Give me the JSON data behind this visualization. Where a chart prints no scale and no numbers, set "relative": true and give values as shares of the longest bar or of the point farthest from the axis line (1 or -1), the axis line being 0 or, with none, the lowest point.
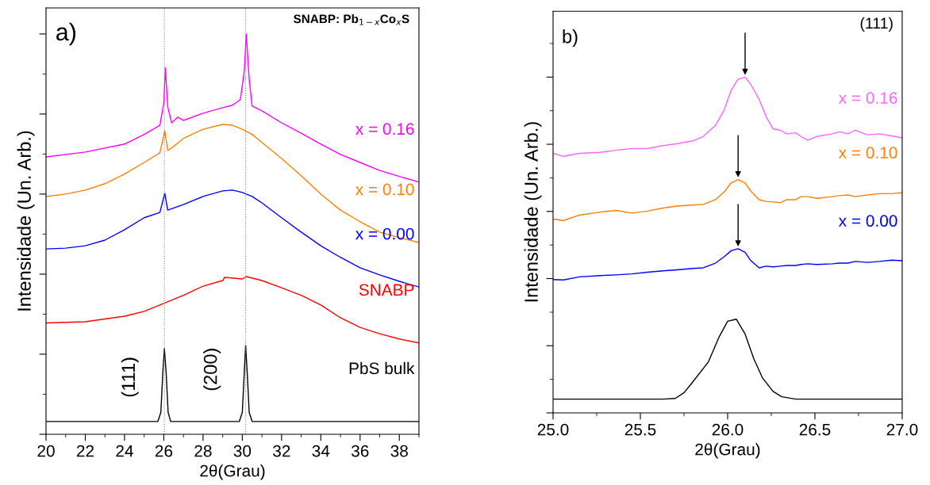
{
  "chart_data": [
    {
      "type": "line",
      "relative": true,
      "xlabel": "2θ(Grau)",
      "ylabel": "Intensidade (Un. Arb.)",
      "xlim": [
        20,
        39
      ],
      "xticks": [
        20,
        22,
        24,
        26,
        28,
        30,
        32,
        34,
        36,
        38
      ],
      "tick_labels": "x",
      "grid": false,
      "legend": false,
      "marker": "none",
      "line_style": "solid",
      "annotations": [
        "a)",
        "SNABP: Pb$_{1−x}$Co$_{x}$S",
        "(111)",
        "(200)"
      ],
      "ref_lines": [
        {
          "axis": "x",
          "value": 26.03,
          "label": null,
          "color": "#808080",
          "line_style": "dotted"
        },
        {
          "axis": "x",
          "value": 30.17,
          "label": null,
          "color": "#808080",
          "line_style": "dotted"
        }
      ],
      "series": [
        {
          "name": "x = 0.16",
          "color": "#ff00ff",
          "x": [
            20,
            22,
            24,
            25,
            25.8,
            26.0,
            26.08,
            26.2,
            26.4,
            26.7,
            27,
            28,
            29,
            29.5,
            29.9,
            30.1,
            30.2,
            30.35,
            30.5,
            31,
            32,
            33,
            34,
            35,
            36,
            37,
            38,
            39
          ],
          "values": [
            0.693,
            0.705,
            0.725,
            0.749,
            0.772,
            0.828,
            0.915,
            0.818,
            0.778,
            0.792,
            0.784,
            0.802,
            0.816,
            0.822,
            0.836,
            0.907,
            1.0,
            0.887,
            0.82,
            0.808,
            0.778,
            0.752,
            0.725,
            0.699,
            0.679,
            0.659,
            0.644,
            0.63
          ]
        },
        {
          "name": "x = 0.10",
          "color": "#ff8000",
          "x": [
            20,
            21,
            22,
            23,
            24,
            25,
            25.8,
            26.05,
            26.2,
            26.5,
            27,
            28,
            29,
            29.5,
            30,
            30.5,
            31,
            32,
            33,
            34,
            35,
            36,
            37,
            38,
            39
          ],
          "values": [
            0.594,
            0.6,
            0.61,
            0.626,
            0.65,
            0.679,
            0.703,
            0.758,
            0.709,
            0.719,
            0.739,
            0.762,
            0.774,
            0.772,
            0.762,
            0.749,
            0.729,
            0.689,
            0.646,
            0.6,
            0.56,
            0.531,
            0.505,
            0.491,
            0.479
          ]
        },
        {
          "name": "x = 0.00",
          "color": "#0000ff",
          "x": [
            20,
            21,
            22,
            23,
            24,
            25,
            25.8,
            26.05,
            26.2,
            27,
            28,
            29,
            29.5,
            30,
            30.5,
            31,
            32,
            33,
            34,
            35,
            36,
            37,
            38,
            39
          ],
          "values": [
            0.463,
            0.465,
            0.471,
            0.485,
            0.511,
            0.541,
            0.554,
            0.602,
            0.56,
            0.574,
            0.594,
            0.608,
            0.61,
            0.604,
            0.594,
            0.578,
            0.541,
            0.505,
            0.471,
            0.442,
            0.416,
            0.398,
            0.382,
            0.368
          ]
        },
        {
          "name": "SNABP",
          "color": "#ff0000",
          "x": [
            20,
            22,
            24,
            25,
            26,
            27,
            28,
            29,
            29.1,
            30,
            30.2,
            31,
            32,
            33,
            34,
            35,
            36,
            37,
            38,
            39
          ],
          "values": [
            0.278,
            0.281,
            0.295,
            0.307,
            0.327,
            0.347,
            0.37,
            0.384,
            0.392,
            0.388,
            0.394,
            0.384,
            0.366,
            0.347,
            0.323,
            0.291,
            0.267,
            0.251,
            0.238,
            0.228
          ]
        },
        {
          "name": "PbS bulk",
          "color": "#000000",
          "x": [
            20,
            25.7,
            25.85,
            25.95,
            26.03,
            26.12,
            26.22,
            26.35,
            29.85,
            30.0,
            30.1,
            30.17,
            30.25,
            30.35,
            30.5,
            39
          ],
          "values": [
            0.032,
            0.032,
            0.055,
            0.154,
            0.214,
            0.154,
            0.055,
            0.032,
            0.032,
            0.055,
            0.154,
            0.222,
            0.154,
            0.055,
            0.032,
            0.032
          ]
        }
      ]
    },
    {
      "type": "line",
      "relative": true,
      "xlabel": "2θ(Grau)",
      "ylabel": "Intensidade (Un. Arb.)",
      "xlim": [
        25,
        27
      ],
      "xticks": [
        {
          "value": 25,
          "label": "25.0"
        },
        {
          "value": 25.5,
          "label": "25.5"
        },
        {
          "value": 26,
          "label": "26.0"
        },
        {
          "value": 26.5,
          "label": "26.5"
        },
        {
          "value": 27,
          "label": "27.0"
        }
      ],
      "tick_labels": "x",
      "grid": false,
      "legend": false,
      "marker": "none",
      "line_style": "solid",
      "annotations": [
        "b)",
        "(111)"
      ],
      "series": [
        {
          "name": "x = 0.16",
          "color": "#ff66ff",
          "x": [
            25.0,
            25.06,
            25.15,
            25.27,
            25.36,
            25.45,
            25.54,
            25.63,
            25.71,
            25.8,
            25.86,
            25.93,
            25.98,
            26.02,
            26.06,
            26.1,
            26.13,
            26.18,
            26.22,
            26.26,
            26.3,
            26.34,
            26.39,
            26.42,
            26.46,
            26.51,
            26.6,
            26.64,
            26.69,
            26.73,
            26.8,
            26.87,
            26.94,
            27.0
          ],
          "values": [
            0.773,
            0.764,
            0.773,
            0.776,
            0.782,
            0.787,
            0.787,
            0.796,
            0.802,
            0.81,
            0.823,
            0.856,
            0.902,
            0.961,
            0.994,
            1.0,
            0.98,
            0.934,
            0.883,
            0.846,
            0.842,
            0.831,
            0.834,
            0.823,
            0.812,
            0.823,
            0.831,
            0.837,
            0.831,
            0.842,
            0.828,
            0.831,
            0.825,
            0.819
          ]
        },
        {
          "name": "x = 0.10",
          "color": "#ff8000",
          "x": [
            25.0,
            25.06,
            25.15,
            25.27,
            25.36,
            25.45,
            25.54,
            25.63,
            25.71,
            25.8,
            25.86,
            25.93,
            25.98,
            26.02,
            26.06,
            26.1,
            26.13,
            26.18,
            26.22,
            26.26,
            26.3,
            26.34,
            26.39,
            26.42,
            26.46,
            26.51,
            26.6,
            26.64,
            26.69,
            26.73,
            26.8,
            26.87,
            26.94,
            27.0
          ],
          "values": [
            0.577,
            0.573,
            0.589,
            0.598,
            0.603,
            0.595,
            0.601,
            0.61,
            0.616,
            0.619,
            0.621,
            0.635,
            0.658,
            0.685,
            0.695,
            0.685,
            0.662,
            0.635,
            0.63,
            0.628,
            0.626,
            0.635,
            0.635,
            0.644,
            0.644,
            0.639,
            0.644,
            0.647,
            0.649,
            0.644,
            0.649,
            0.653,
            0.653,
            0.656
          ]
        },
        {
          "name": "x = 0.00",
          "color": "#0000ff",
          "x": [
            25.0,
            25.06,
            25.15,
            25.27,
            25.36,
            25.45,
            25.54,
            25.63,
            25.71,
            25.8,
            25.86,
            25.93,
            25.98,
            26.02,
            26.06,
            26.1,
            26.13,
            26.18,
            26.22,
            26.26,
            26.3,
            26.34,
            26.39,
            26.42,
            26.46,
            26.51,
            26.6,
            26.64,
            26.69,
            26.73,
            26.8,
            26.87,
            26.94,
            27.0
          ],
          "values": [
            0.397,
            0.396,
            0.405,
            0.409,
            0.411,
            0.414,
            0.419,
            0.423,
            0.426,
            0.43,
            0.432,
            0.446,
            0.465,
            0.483,
            0.489,
            0.478,
            0.455,
            0.432,
            0.437,
            0.435,
            0.437,
            0.439,
            0.439,
            0.442,
            0.444,
            0.442,
            0.444,
            0.446,
            0.446,
            0.451,
            0.448,
            0.451,
            0.455,
            0.453
          ]
        },
        {
          "color": "#000000",
          "x": [
            25.0,
            25.63,
            25.7,
            25.75,
            25.8,
            25.89,
            25.95,
            26.0,
            26.05,
            26.1,
            26.15,
            26.2,
            26.26,
            26.31,
            26.39,
            27.0
          ],
          "values": [
            0.041,
            0.041,
            0.043,
            0.06,
            0.092,
            0.152,
            0.225,
            0.273,
            0.279,
            0.235,
            0.161,
            0.104,
            0.064,
            0.048,
            0.041,
            0.041
          ]
        }
      ]
    }
  ]
}
